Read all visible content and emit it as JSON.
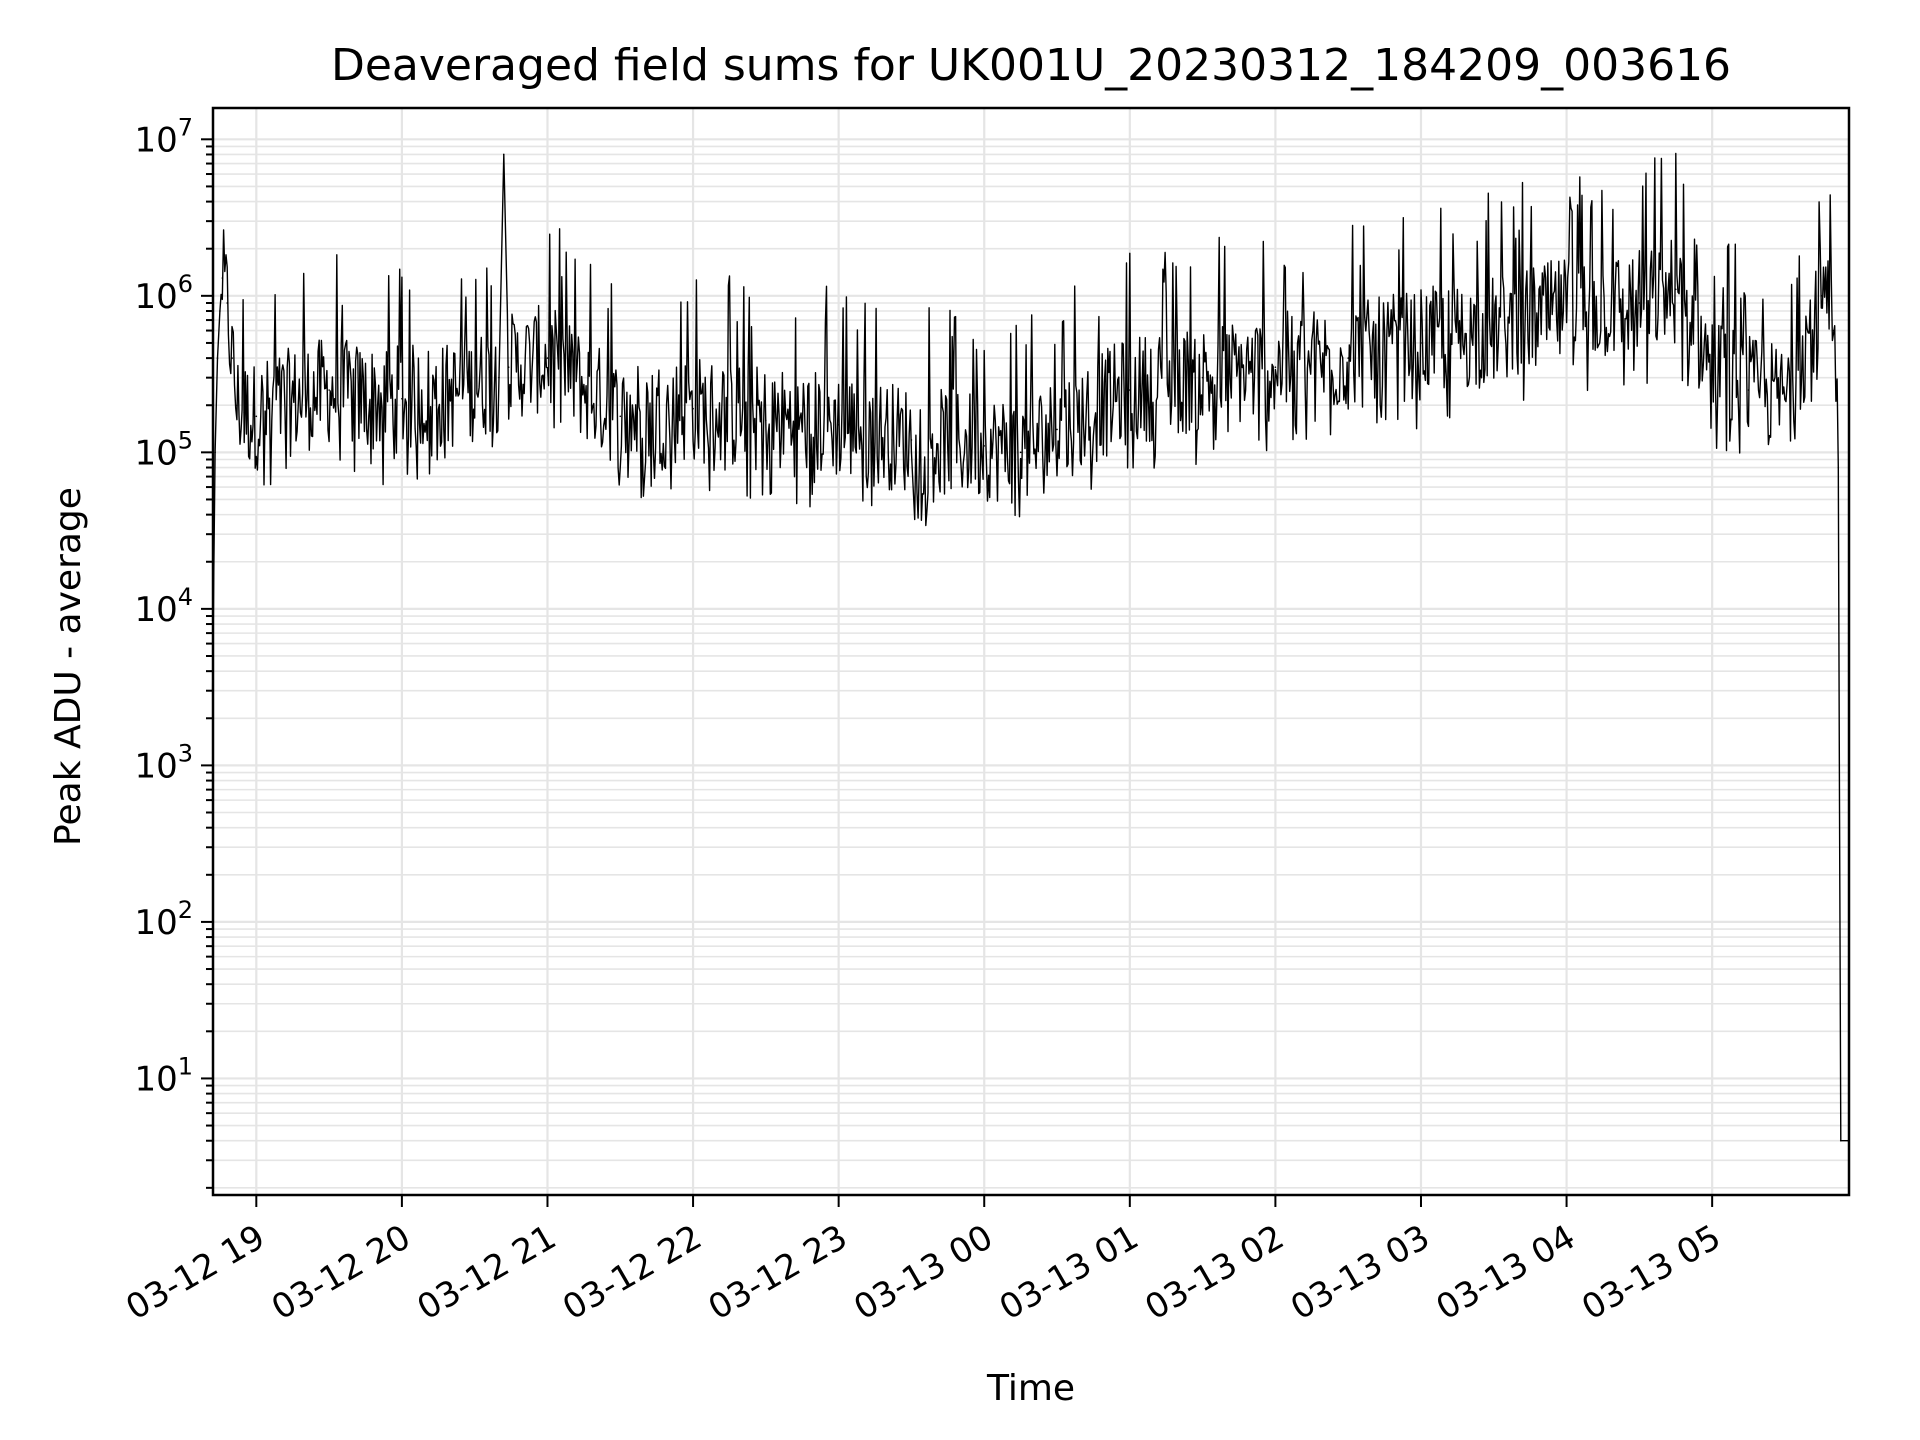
{
  "chart_data": {
    "type": "line",
    "title": "Deaveraged field sums for UK001U_20230312_184209_003616",
    "xlabel": "Time",
    "ylabel": "Peak ADU - average",
    "yscale": "log",
    "ylim": [
      1.8,
      15848931
    ],
    "xlim": [
      "2023-03-12 18:42:09",
      "2023-03-13 05:56:24"
    ],
    "grid": true,
    "x_ticks": [
      {
        "value": "2023-03-12 19:00",
        "label": "03-12 19"
      },
      {
        "value": "2023-03-12 20:00",
        "label": "03-12 20"
      },
      {
        "value": "2023-03-12 21:00",
        "label": "03-12 21"
      },
      {
        "value": "2023-03-12 22:00",
        "label": "03-12 22"
      },
      {
        "value": "2023-03-12 23:00",
        "label": "03-12 23"
      },
      {
        "value": "2023-03-13 00:00",
        "label": "03-13 00"
      },
      {
        "value": "2023-03-13 01:00",
        "label": "03-13 01"
      },
      {
        "value": "2023-03-13 02:00",
        "label": "03-13 02"
      },
      {
        "value": "2023-03-13 03:00",
        "label": "03-13 03"
      },
      {
        "value": "2023-03-13 04:00",
        "label": "03-13 04"
      },
      {
        "value": "2023-03-13 05:00",
        "label": "03-13 05"
      }
    ],
    "y_ticks": [
      {
        "value": 10,
        "base": "10",
        "exp": "1"
      },
      {
        "value": 100,
        "base": "10",
        "exp": "2"
      },
      {
        "value": 1000,
        "base": "10",
        "exp": "3"
      },
      {
        "value": 10000,
        "base": "10",
        "exp": "4"
      },
      {
        "value": 100000,
        "base": "10",
        "exp": "5"
      },
      {
        "value": 1000000,
        "base": "10",
        "exp": "6"
      },
      {
        "value": 10000000,
        "base": "10",
        "exp": "7"
      }
    ],
    "line_color": "#000000",
    "grid_color": "#e5e5e5",
    "series": [
      {
        "x": [
          "2023-03-12 18:42",
          "2023-03-12 18:43",
          "2023-03-12 18:44",
          "2023-03-12 18:45",
          "2023-03-12 18:46",
          "2023-03-12 18:48",
          "2023-03-12 18:50",
          "2023-03-12 18:52",
          "2023-03-12 18:55",
          "2023-03-12 19:00",
          "2023-03-12 19:10",
          "2023-03-12 19:30",
          "2023-03-12 19:45",
          "2023-03-12 20:00",
          "2023-03-12 20:20",
          "2023-03-12 20:40",
          "2023-03-12 20:42",
          "2023-03-12 20:44",
          "2023-03-12 21:00",
          "2023-03-12 21:30",
          "2023-03-12 22:00",
          "2023-03-12 22:30",
          "2023-03-12 23:00",
          "2023-03-12 23:30",
          "2023-03-13 00:00",
          "2023-03-13 00:15",
          "2023-03-13 00:30",
          "2023-03-13 01:00",
          "2023-03-13 01:30",
          "2023-03-13 02:00",
          "2023-03-13 02:30",
          "2023-03-13 03:00",
          "2023-03-13 03:30",
          "2023-03-13 04:00",
          "2023-03-13 04:30",
          "2023-03-13 04:45",
          "2023-03-13 05:00",
          "2023-03-13 05:15",
          "2023-03-13 05:30",
          "2023-03-13 05:45",
          "2023-03-13 05:50",
          "2023-03-13 05:52",
          "2023-03-13 05:53",
          "2023-03-13 05:56"
        ],
        "y": [
          3000,
          100000,
          400000,
          800000,
          1300000,
          900000,
          400000,
          200000,
          180000,
          170000,
          200000,
          250000,
          220000,
          220000,
          230000,
          300000,
          8000000,
          350000,
          400000,
          170000,
          190000,
          160000,
          150000,
          120000,
          110000,
          100000,
          140000,
          250000,
          300000,
          350000,
          400000,
          500000,
          600000,
          800000,
          900000,
          1100000,
          350000,
          250000,
          220000,
          1000000,
          600000,
          80000,
          4,
          4
        ]
      }
    ]
  }
}
